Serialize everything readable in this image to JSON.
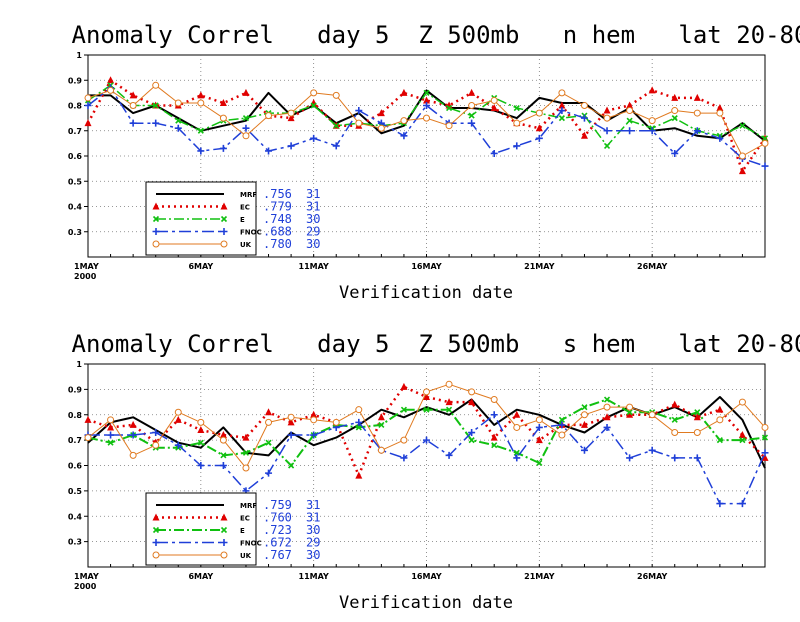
{
  "colors": {
    "mrf": "#000000",
    "ec": "#e00000",
    "e": "#10c010",
    "fnoc": "#1f3fd8",
    "uk": "#e07a20",
    "grid": "#777777"
  },
  "chart_data": [
    {
      "type": "line",
      "title": "Anomaly Correl   day 5  Z 500mb   n hem   lat 20-80",
      "xlabel": "Verification date",
      "ylabel": "",
      "ylim": [
        0.2,
        1.0
      ],
      "yticks": [
        "0.3",
        "0.4",
        "0.5",
        "0.6",
        "0.7",
        "0.8",
        "0.9",
        "1"
      ],
      "xticks": [
        {
          "day": 1,
          "label": "1MAY",
          "sub": "2000"
        },
        {
          "day": 6,
          "label": "6MAY"
        },
        {
          "day": 11,
          "label": "11MAY"
        },
        {
          "day": 16,
          "label": "16MAY"
        },
        {
          "day": 21,
          "label": "21MAY"
        },
        {
          "day": 26,
          "label": "26MAY"
        }
      ],
      "xlim": [
        1,
        31
      ],
      "grid": true,
      "legend_position": "bottom-left",
      "series": [
        {
          "name": "MRF",
          "key": "mrf",
          "mean": ".756",
          "count": "31",
          "marker": "none",
          "dash": "",
          "width": 2,
          "x": [
            1,
            2,
            3,
            4,
            5,
            6,
            7,
            8,
            9,
            10,
            11,
            12,
            13,
            14,
            15,
            16,
            17,
            18,
            19,
            20,
            21,
            22,
            23,
            24,
            25,
            26,
            27,
            28,
            29,
            30,
            31
          ],
          "values": [
            0.84,
            0.84,
            0.77,
            0.8,
            0.75,
            0.7,
            0.72,
            0.74,
            0.85,
            0.76,
            0.8,
            0.73,
            0.77,
            0.69,
            0.72,
            0.86,
            0.79,
            0.79,
            0.78,
            0.75,
            0.83,
            0.81,
            0.81,
            0.74,
            0.79,
            0.7,
            0.71,
            0.68,
            0.67,
            0.73,
            0.66
          ]
        },
        {
          "name": "EC",
          "key": "ec",
          "mean": ".779",
          "count": "31",
          "marker": "triangle",
          "dash": "2,4",
          "width": 2.5,
          "x": [
            1,
            2,
            3,
            4,
            5,
            6,
            7,
            8,
            9,
            10,
            11,
            12,
            13,
            14,
            15,
            16,
            17,
            18,
            19,
            20,
            21,
            22,
            23,
            24,
            25,
            26,
            27,
            28,
            29,
            30,
            31
          ],
          "values": [
            0.73,
            0.9,
            0.84,
            0.8,
            0.8,
            0.84,
            0.81,
            0.85,
            0.76,
            0.75,
            0.81,
            0.72,
            0.72,
            0.77,
            0.85,
            0.82,
            0.8,
            0.85,
            0.79,
            0.73,
            0.71,
            0.8,
            0.68,
            0.78,
            0.8,
            0.86,
            0.83,
            0.83,
            0.79,
            0.54,
            0.67
          ]
        },
        {
          "name": "E",
          "key": "e",
          "mean": ".748",
          "count": "30",
          "marker": "x",
          "dash": "10,3,2,3",
          "width": 1.5,
          "x": [
            1,
            2,
            3,
            4,
            5,
            6,
            7,
            8,
            9,
            10,
            11,
            12,
            13,
            14,
            15,
            16,
            17,
            18,
            19,
            20,
            21,
            22,
            23,
            24,
            25,
            26,
            27,
            28,
            29,
            30,
            31
          ],
          "values": [
            0.82,
            0.88,
            0.8,
            0.8,
            0.74,
            0.7,
            0.74,
            0.75,
            0.77,
            0.77,
            0.8,
            0.72,
            0.73,
            0.72,
            0.73,
            0.85,
            0.79,
            0.76,
            0.83,
            0.79,
            0.77,
            0.75,
            0.76,
            0.64,
            0.74,
            0.71,
            0.75,
            0.7,
            0.68,
            0.72,
            0.67
          ]
        },
        {
          "name": "FNOC",
          "key": "fnoc",
          "mean": ".688",
          "count": "29",
          "marker": "plus",
          "dash": "12,4,3,4",
          "width": 1.5,
          "x": [
            1,
            2,
            3,
            4,
            5,
            6,
            7,
            8,
            9,
            10,
            11,
            12,
            13,
            14,
            15,
            16,
            17,
            18,
            19,
            20,
            21,
            22,
            23,
            24,
            25,
            26,
            27,
            28,
            29,
            30,
            31
          ],
          "values": [
            0.8,
            0.87,
            0.73,
            0.73,
            0.71,
            0.62,
            0.63,
            0.71,
            0.62,
            0.64,
            0.67,
            0.64,
            0.78,
            0.73,
            0.68,
            0.8,
            0.73,
            0.73,
            0.61,
            0.64,
            0.67,
            0.78,
            0.75,
            0.7,
            0.7,
            0.7,
            0.61,
            0.7,
            0.67,
            0.59,
            0.56
          ]
        },
        {
          "name": "UK",
          "key": "uk",
          "mean": ".780",
          "count": "30",
          "marker": "circle",
          "dash": "",
          "width": 1,
          "x": [
            1,
            2,
            3,
            4,
            5,
            6,
            7,
            8,
            9,
            10,
            11,
            12,
            13,
            14,
            15,
            16,
            17,
            18,
            19,
            20,
            21,
            22,
            23,
            24,
            25,
            26,
            27,
            28,
            29,
            30,
            31
          ],
          "values": [
            0.83,
            0.86,
            0.8,
            0.88,
            0.81,
            0.81,
            0.75,
            0.68,
            0.76,
            0.77,
            0.85,
            0.84,
            0.73,
            0.71,
            0.74,
            0.75,
            0.72,
            0.8,
            0.82,
            0.73,
            0.77,
            0.85,
            0.8,
            0.75,
            0.78,
            0.74,
            0.78,
            0.77,
            0.77,
            0.6,
            0.65
          ]
        }
      ]
    },
    {
      "type": "line",
      "title": "Anomaly Correl   day 5  Z 500mb   s hem   lat 20-80",
      "xlabel": "Verification date",
      "ylabel": "",
      "ylim": [
        0.2,
        1.0
      ],
      "yticks": [
        "0.3",
        "0.4",
        "0.5",
        "0.6",
        "0.7",
        "0.8",
        "0.9",
        "1"
      ],
      "xticks": [
        {
          "day": 1,
          "label": "1MAY",
          "sub": "2000"
        },
        {
          "day": 6,
          "label": "6MAY"
        },
        {
          "day": 11,
          "label": "11MAY"
        },
        {
          "day": 16,
          "label": "16MAY"
        },
        {
          "day": 21,
          "label": "21MAY"
        },
        {
          "day": 26,
          "label": "26MAY"
        }
      ],
      "xlim": [
        1,
        31
      ],
      "grid": true,
      "legend_position": "bottom-left",
      "series": [
        {
          "name": "MRF",
          "key": "mrf",
          "mean": ".759",
          "count": "31",
          "marker": "none",
          "dash": "",
          "width": 2,
          "x": [
            1,
            2,
            3,
            4,
            5,
            6,
            7,
            8,
            9,
            10,
            11,
            12,
            13,
            14,
            15,
            16,
            17,
            18,
            19,
            20,
            21,
            22,
            23,
            24,
            25,
            26,
            27,
            28,
            29,
            30,
            31
          ],
          "values": [
            0.69,
            0.77,
            0.79,
            0.74,
            0.69,
            0.67,
            0.75,
            0.65,
            0.64,
            0.73,
            0.68,
            0.71,
            0.76,
            0.82,
            0.79,
            0.83,
            0.8,
            0.86,
            0.76,
            0.82,
            0.8,
            0.76,
            0.73,
            0.79,
            0.83,
            0.8,
            0.83,
            0.79,
            0.87,
            0.78,
            0.59
          ]
        },
        {
          "name": "EC",
          "key": "ec",
          "mean": ".760",
          "count": "31",
          "marker": "triangle",
          "dash": "2,4",
          "width": 2.5,
          "x": [
            1,
            2,
            3,
            4,
            5,
            6,
            7,
            8,
            9,
            10,
            11,
            12,
            13,
            14,
            15,
            16,
            17,
            18,
            19,
            20,
            21,
            22,
            23,
            24,
            25,
            26,
            27,
            28,
            29,
            30,
            31
          ],
          "values": [
            0.78,
            0.75,
            0.76,
            0.69,
            0.78,
            0.74,
            0.72,
            0.71,
            0.81,
            0.77,
            0.8,
            0.77,
            0.56,
            0.79,
            0.91,
            0.87,
            0.85,
            0.85,
            0.71,
            0.8,
            0.7,
            0.76,
            0.76,
            0.79,
            0.8,
            0.8,
            0.84,
            0.79,
            0.82,
            0.72,
            0.63
          ]
        },
        {
          "name": "E",
          "key": "e",
          "mean": ".723",
          "count": "30",
          "marker": "x",
          "dash": "10,3,2,3",
          "width": 2,
          "x": [
            1,
            2,
            3,
            4,
            5,
            6,
            7,
            8,
            9,
            10,
            11,
            12,
            13,
            14,
            15,
            16,
            17,
            18,
            19,
            20,
            21,
            22,
            23,
            24,
            25,
            26,
            27,
            28,
            29,
            30,
            31
          ],
          "values": [
            0.71,
            0.69,
            0.72,
            0.67,
            0.67,
            0.69,
            0.64,
            0.65,
            0.69,
            0.6,
            0.72,
            0.76,
            0.75,
            0.76,
            0.82,
            0.82,
            0.82,
            0.7,
            0.68,
            0.65,
            0.61,
            0.78,
            0.83,
            0.86,
            0.81,
            0.81,
            0.78,
            0.81,
            0.7,
            0.7,
            0.71
          ]
        },
        {
          "name": "FNOC",
          "key": "fnoc",
          "mean": ".672",
          "count": "29",
          "marker": "plus",
          "dash": "12,4,3,4",
          "width": 1.5,
          "x": [
            1,
            2,
            3,
            4,
            5,
            6,
            7,
            8,
            9,
            10,
            11,
            12,
            13,
            14,
            15,
            16,
            17,
            18,
            19,
            20,
            21,
            22,
            23,
            24,
            25,
            26,
            27,
            28,
            29,
            30,
            31
          ],
          "values": [
            0.72,
            0.72,
            0.72,
            0.73,
            0.68,
            0.6,
            0.6,
            0.5,
            0.57,
            0.72,
            0.72,
            0.75,
            0.77,
            0.66,
            0.63,
            0.7,
            0.64,
            0.73,
            0.8,
            0.63,
            0.75,
            0.76,
            0.66,
            0.75,
            0.63,
            0.66,
            0.63,
            0.63,
            0.45,
            0.45,
            0.65
          ]
        },
        {
          "name": "UK",
          "key": "uk",
          "mean": ".767",
          "count": "30",
          "marker": "circle",
          "dash": "",
          "width": 1,
          "x": [
            1,
            2,
            3,
            4,
            5,
            6,
            7,
            8,
            9,
            10,
            11,
            12,
            13,
            14,
            15,
            16,
            17,
            18,
            19,
            20,
            21,
            22,
            23,
            24,
            25,
            26,
            27,
            28,
            29,
            30,
            31
          ],
          "values": [
            0.71,
            0.78,
            0.64,
            0.68,
            0.81,
            0.77,
            0.7,
            0.59,
            0.77,
            0.79,
            0.78,
            0.77,
            0.82,
            0.66,
            0.7,
            0.89,
            0.92,
            0.89,
            0.86,
            0.75,
            0.78,
            0.72,
            0.8,
            0.83,
            0.83,
            0.8,
            0.73,
            0.73,
            0.78,
            0.85,
            0.75
          ]
        }
      ]
    }
  ]
}
